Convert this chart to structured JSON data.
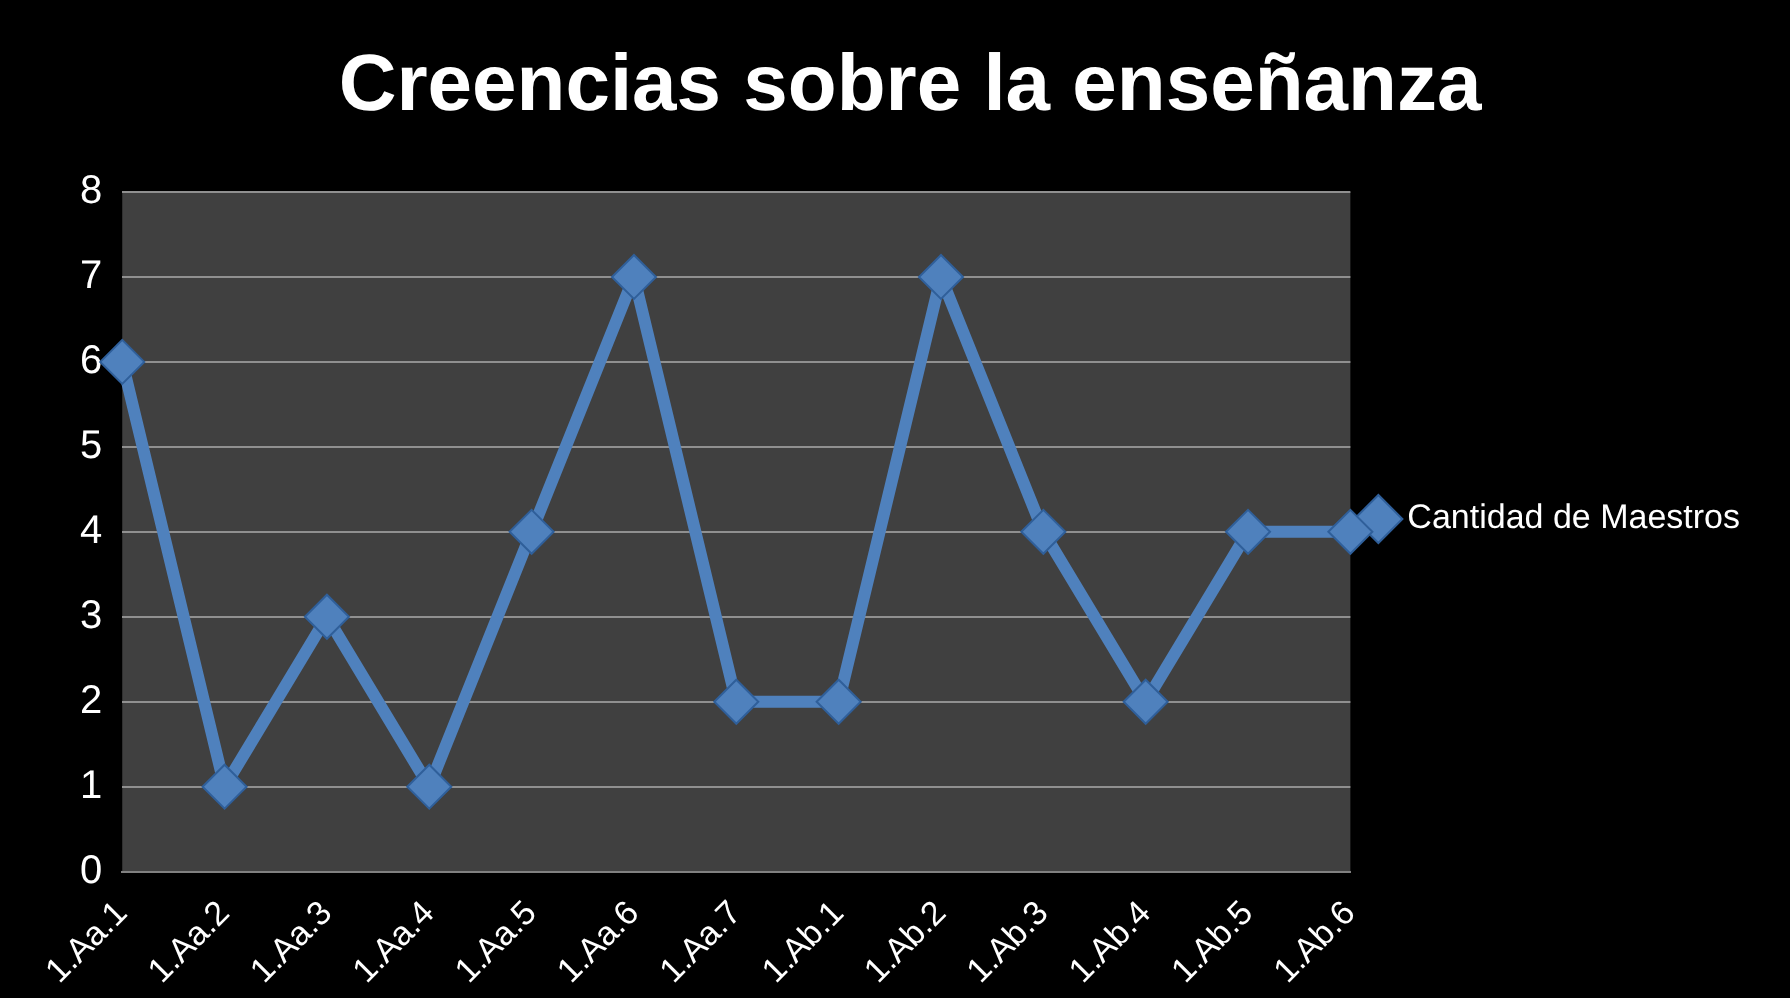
{
  "chart_data": {
    "type": "line",
    "title": "Creencias sobre la enseñanza",
    "categories": [
      "1.Aa.1",
      "1.Aa.2",
      "1.Aa.3",
      "1.Aa.4",
      "1.Aa.5",
      "1.Aa.6",
      "1.Aa.7",
      "1.Ab.1",
      "1.Ab.2",
      "1.Ab.3",
      "1.Ab.4",
      "1.Ab.5",
      "1.Ab.6"
    ],
    "series": [
      {
        "name": "Cantidad de Maestros",
        "color": "#4f81bd",
        "values": [
          6,
          1,
          3,
          1,
          4,
          7,
          2,
          2,
          7,
          4,
          2,
          4,
          4
        ]
      }
    ],
    "ylim": [
      0,
      8
    ],
    "yticks": [
      0,
      1,
      2,
      3,
      4,
      5,
      6,
      7,
      8
    ],
    "grid": "y",
    "legend": "right",
    "marker": "diamond",
    "line_style": "solid"
  }
}
